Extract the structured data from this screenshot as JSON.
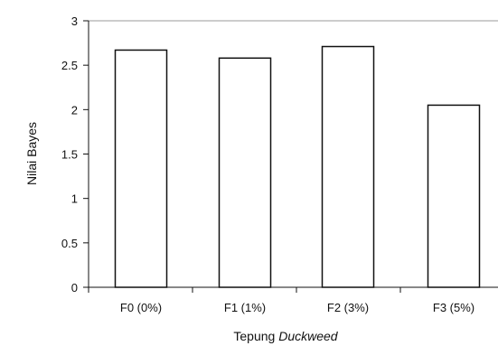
{
  "chart_data": {
    "type": "bar",
    "categories": [
      "F0 (0%)",
      "F1 (1%)",
      "F2 (3%)",
      "F3 (5%)"
    ],
    "values": [
      2.67,
      2.58,
      2.71,
      2.05
    ],
    "xlabel_plain": "Tepung ",
    "xlabel_italic": "Duckweed",
    "ylabel": "Nilai Bayes",
    "ylim": [
      0,
      3
    ],
    "yticks": [
      "0",
      "0.5",
      "1",
      "1.5",
      "2",
      "2.5",
      "3"
    ],
    "ytick_values": [
      0,
      0.5,
      1,
      1.5,
      2,
      2.5,
      3
    ],
    "grid": false,
    "bar_fill": "#ffffff",
    "bar_stroke": "#111111",
    "frame_color": "#999999"
  }
}
